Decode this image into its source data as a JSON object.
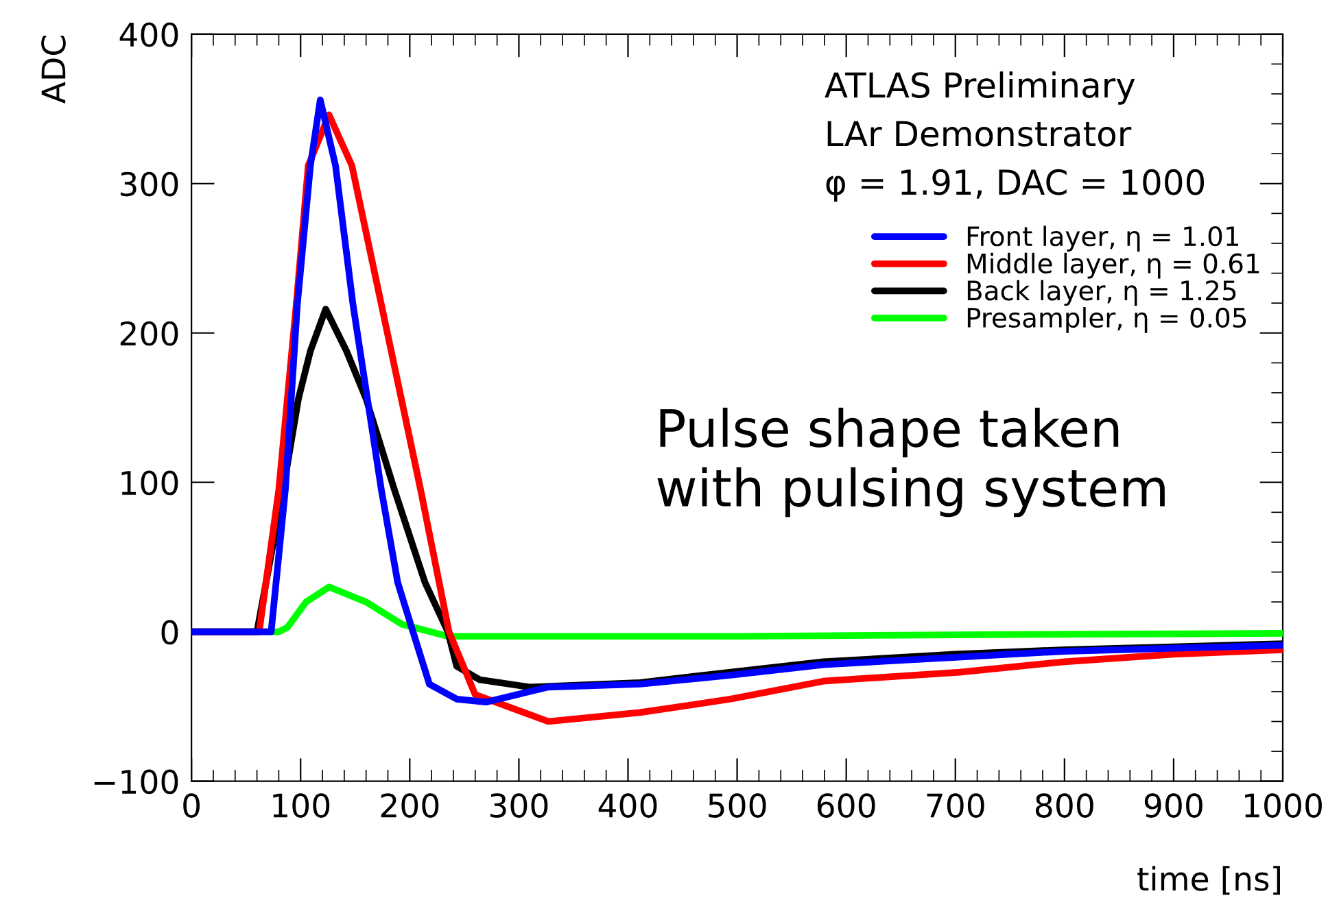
{
  "chart_data": {
    "type": "line",
    "xlabel": "time [ns]",
    "ylabel": "ADC",
    "annotations": [
      "ATLAS Preliminary",
      "LAr Demonstrator",
      "φ = 1.91, DAC = 1000",
      "Pulse shape taken\nwith pulsing system"
    ],
    "xlim": [
      0,
      1000
    ],
    "xticks": [
      0,
      100,
      200,
      300,
      400,
      500,
      600,
      700,
      800,
      900,
      1000
    ],
    "ylim": [
      -100,
      400
    ],
    "yticks": [
      {
        "value": -100,
        "label": "−100"
      },
      0,
      100,
      200,
      300,
      400
    ],
    "grid": false,
    "legend": "top right",
    "series": [
      {
        "name": "Front layer, η = 1.01",
        "color": "#0000ff",
        "x": [
          0,
          73,
          86,
          97,
          109,
          118,
          132,
          148,
          174,
          189,
          203,
          218,
          243,
          270,
          327,
          411,
          494,
          579,
          700,
          800,
          900,
          1000
        ],
        "values": [
          0,
          0,
          95,
          219,
          312,
          356,
          312,
          219,
          95,
          33,
          0,
          -35,
          -45,
          -47,
          -37,
          -35,
          -29,
          -22,
          -17,
          -13,
          -11,
          -9
        ]
      },
      {
        "name": "Middle layer, η = 0.61",
        "color": "#ff0000",
        "x": [
          0,
          62,
          80,
          96,
          107,
          126,
          147,
          174,
          210,
          236,
          260,
          327,
          411,
          494,
          579,
          704,
          800,
          900,
          1000
        ],
        "values": [
          0,
          0,
          95,
          219,
          312,
          346,
          312,
          219,
          95,
          0,
          -42,
          -60,
          -54,
          -45,
          -33,
          -27,
          -20,
          -15,
          -12
        ]
      },
      {
        "name": "Back layer, η = 1.25",
        "color": "#000000",
        "x": [
          0,
          60,
          84,
          98,
          109,
          123,
          142,
          160,
          186,
          214,
          235,
          243,
          264,
          310,
          411,
          494,
          579,
          700,
          800,
          900,
          1000
        ],
        "values": [
          0,
          0,
          95,
          156,
          188,
          216,
          188,
          156,
          95,
          33,
          0,
          -23,
          -32,
          -37,
          -34,
          -27,
          -20,
          -15,
          -12,
          -10,
          -8
        ]
      },
      {
        "name": "Presampler, η = 0.05",
        "color": "#00ff00",
        "x": [
          0,
          80,
          88,
          105,
          126,
          160,
          193,
          235,
          300,
          500,
          700,
          1000
        ],
        "values": [
          0,
          0,
          3,
          20,
          30,
          20,
          5,
          -3,
          -3,
          -3,
          -2,
          -1
        ]
      }
    ]
  }
}
